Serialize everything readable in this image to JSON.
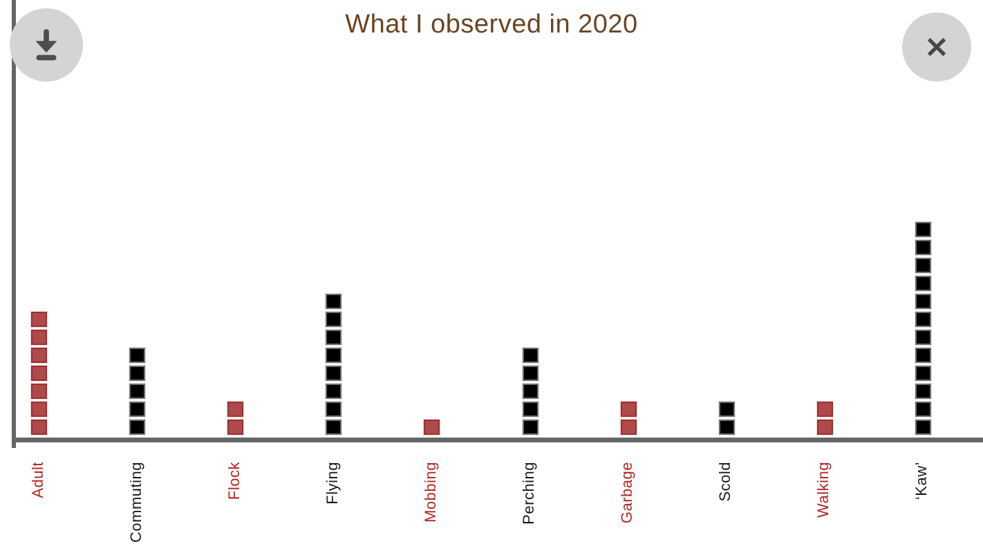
{
  "ui": {
    "title": "What I observed in 2020",
    "title_color": "#6b4423",
    "axis_color": "#666666",
    "background": "#ffffff",
    "buttons": {
      "download": {
        "icon": "download-arrow-icon"
      },
      "close": {
        "icon": "close-x-icon"
      }
    }
  },
  "chart_data": {
    "type": "bar",
    "subtype": "unit-square-column",
    "title": "What I observed in 2020",
    "xlabel": "",
    "ylabel": "",
    "legend": "none",
    "grid": false,
    "categories": [
      "Adult",
      "Commuting",
      "Flock",
      "Flying",
      "Mobbing",
      "Perching",
      "Garbage",
      "Scold",
      "Walking",
      "‘Kaw’"
    ],
    "values": [
      7,
      5,
      2,
      8,
      1,
      5,
      2,
      2,
      2,
      12
    ],
    "colors": [
      "red",
      "black",
      "red",
      "black",
      "red",
      "black",
      "red",
      "black",
      "red",
      "black"
    ],
    "ylim": [
      0,
      12
    ],
    "palette": {
      "square_red_fill": "#b04a4a",
      "square_red_border": "#9e2f2f",
      "square_black_fill": "#000000",
      "square_black_border": "#6e6e6e",
      "label_red": "#b32622",
      "label_black": "#1a1a1a"
    }
  }
}
